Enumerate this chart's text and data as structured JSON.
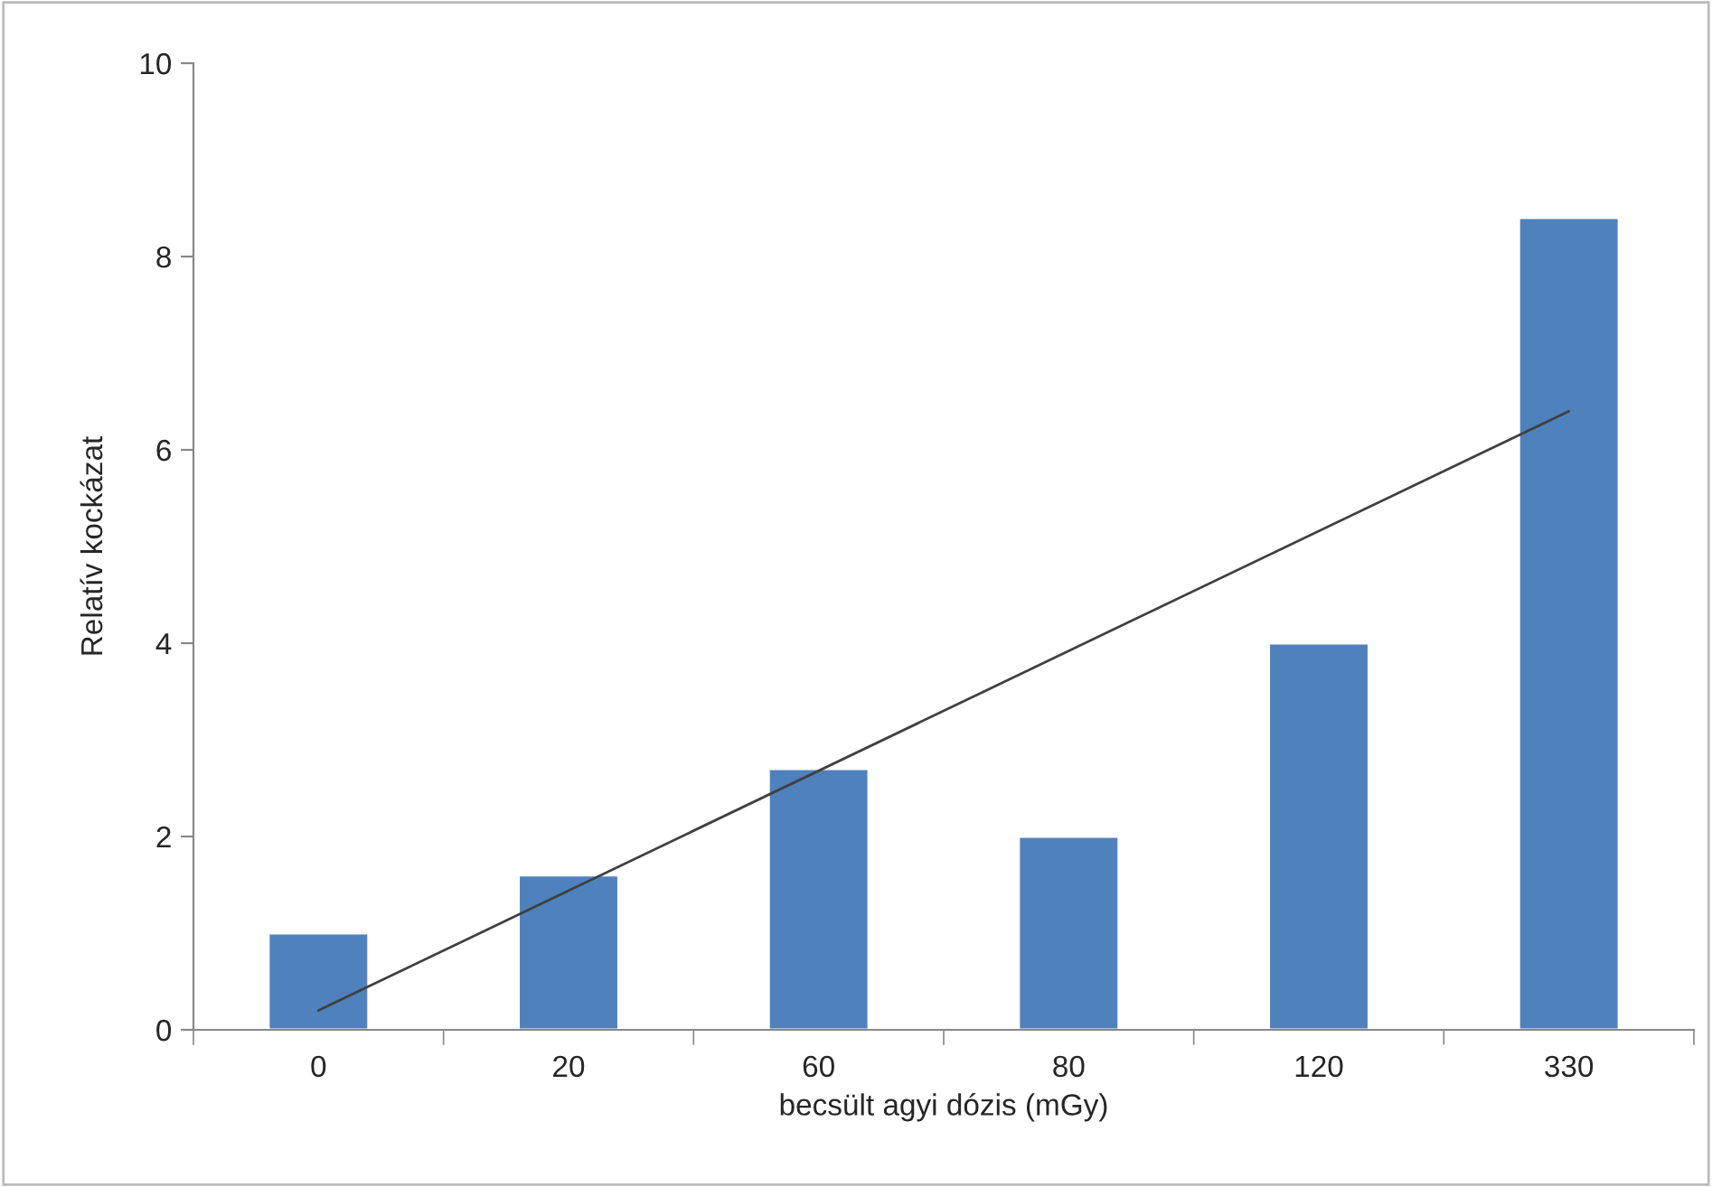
{
  "chart_data": {
    "type": "bar",
    "xlabel": "becsült agyi dózis (mGy)",
    "ylabel": "Relatív kockázat",
    "categories": [
      "0",
      "20",
      "60",
      "80",
      "120",
      "330"
    ],
    "series": [
      {
        "color": "#4f81bd",
        "values": [
          1.0,
          1.6,
          2.7,
          2.0,
          4.0,
          8.4
        ]
      },
      {
        "type": "line",
        "color": "#404040",
        "x": [
          "0",
          "330"
        ],
        "values": [
          0.2,
          6.4
        ]
      }
    ],
    "ylim": [
      0,
      10
    ],
    "yticks": [
      0,
      2,
      4,
      6,
      8,
      10
    ],
    "grid": false,
    "legend": false
  }
}
